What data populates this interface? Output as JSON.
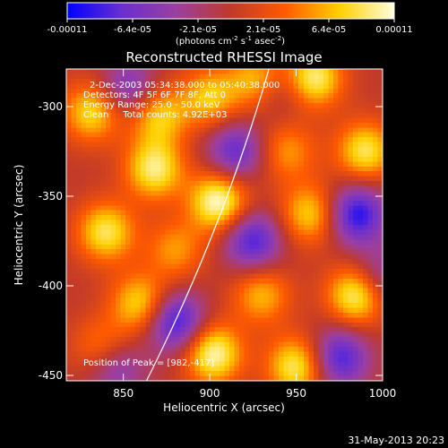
{
  "chart_data": {
    "type": "heatmap",
    "title": "Reconstructed RHESSI Image",
    "xlabel": "Heliocentric X (arcsec)",
    "ylabel": "Heliocentric Y (arcsec)",
    "xlim": [
      817,
      1000
    ],
    "ylim": [
      -453,
      -279
    ],
    "x_ticks": [
      "850",
      "900",
      "950",
      "1000"
    ],
    "y_ticks": [
      "-300",
      "-350",
      "-400",
      "-450"
    ],
    "colorbar": {
      "ticks": [
        "-0.00011",
        "-6.4e-05",
        "-2.1e-05",
        "2.1e-05",
        "6.4e-05",
        "0.00011"
      ],
      "unit_label_parts": [
        "(photons cm",
        "-2",
        " s",
        "-1",
        " asec",
        "-2",
        ")"
      ],
      "range": [
        -0.00011,
        0.00011
      ],
      "colors": [
        "#0000ff",
        "#6a2fd0",
        "#9b3fa0",
        "#c0392b",
        "#ff5a00",
        "#ffd000",
        "#ffffe0"
      ]
    },
    "annotations": [
      "2-Dec-2003 05:34:38.000 to 05:40:38.000",
      "Detectors: 4F 5F 6F 7F 8F, Att 0",
      "Energy Range: 25.0 - 50.0 keV",
      "Clean     Total counts: 4.92E+03"
    ],
    "peak_text": "Position of Peak = [982,-417]",
    "limb_color": "#ffffff",
    "sources": [
      {
        "x": 905,
        "y": -353,
        "amp": 1.0
      },
      {
        "x": 985,
        "y": -405,
        "amp": 0.95
      },
      {
        "x": 902,
        "y": -438,
        "amp": 0.95
      },
      {
        "x": 868,
        "y": -335,
        "amp": 0.85
      },
      {
        "x": 840,
        "y": -370,
        "amp": 0.8
      },
      {
        "x": 832,
        "y": -303,
        "amp": 0.75
      },
      {
        "x": 870,
        "y": -305,
        "amp": 0.7
      },
      {
        "x": 900,
        "y": -295,
        "amp": 0.65
      },
      {
        "x": 928,
        "y": -285,
        "amp": 0.7
      },
      {
        "x": 960,
        "y": -284,
        "amp": 0.9
      },
      {
        "x": 990,
        "y": -325,
        "amp": 0.8
      },
      {
        "x": 945,
        "y": -325,
        "amp": 0.5
      },
      {
        "x": 958,
        "y": -360,
        "amp": 0.7
      },
      {
        "x": 950,
        "y": -445,
        "amp": 0.85
      },
      {
        "x": 930,
        "y": -405,
        "amp": 0.6
      },
      {
        "x": 860,
        "y": -410,
        "amp": 0.75
      },
      {
        "x": 838,
        "y": -435,
        "amp": 0.55
      },
      {
        "x": 880,
        "y": -380,
        "amp": 0.5
      },
      {
        "x": 925,
        "y": -375,
        "amp": -0.8
      },
      {
        "x": 985,
        "y": -360,
        "amp": -0.9
      },
      {
        "x": 915,
        "y": -325,
        "amp": -0.7
      },
      {
        "x": 880,
        "y": -420,
        "amp": -0.9
      },
      {
        "x": 845,
        "y": -445,
        "amp": -0.6
      },
      {
        "x": 975,
        "y": -440,
        "amp": -0.8
      },
      {
        "x": 940,
        "y": -290,
        "amp": -0.4
      },
      {
        "x": 853,
        "y": -290,
        "amp": -0.6
      },
      {
        "x": 998,
        "y": -395,
        "amp": -0.5
      }
    ]
  },
  "footer": {
    "date": "31-May-2013 20:23"
  }
}
